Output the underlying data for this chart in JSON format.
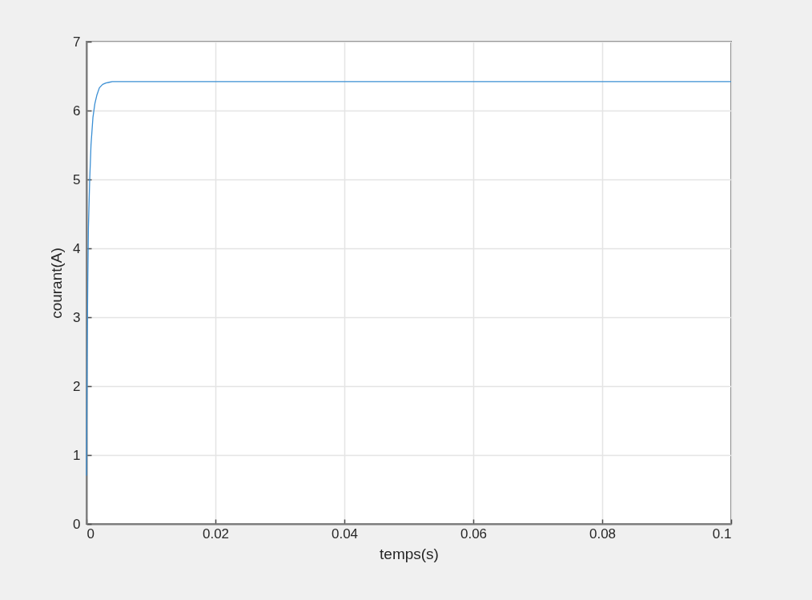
{
  "chart_data": {
    "type": "line",
    "xlabel": "temps(s)",
    "ylabel": "courant(A)",
    "x": [
      0,
      0.0001,
      0.0002,
      0.0003,
      0.0005,
      0.0007,
      0.001,
      0.0013,
      0.0016,
      0.002,
      0.0025,
      0.003,
      0.0035,
      0.004,
      0.01,
      0.03,
      0.05,
      0.07,
      0.1
    ],
    "series": [
      {
        "color": "#3b8fd4",
        "values": [
          0.7,
          2.4,
          3.5,
          4.3,
          5.0,
          5.5,
          5.9,
          6.1,
          6.22,
          6.33,
          6.38,
          6.4,
          6.41,
          6.42,
          6.42,
          6.42,
          6.42,
          6.42,
          6.42
        ]
      }
    ],
    "xlim": [
      0,
      0.1
    ],
    "xticks": [
      0,
      0.02,
      0.04,
      0.06,
      0.08,
      0.1
    ],
    "ylim": [
      0,
      7
    ],
    "yticks": [
      0,
      1,
      2,
      3,
      4,
      5,
      6,
      7
    ],
    "grid": true,
    "marker": "none",
    "line_style": "solid"
  }
}
